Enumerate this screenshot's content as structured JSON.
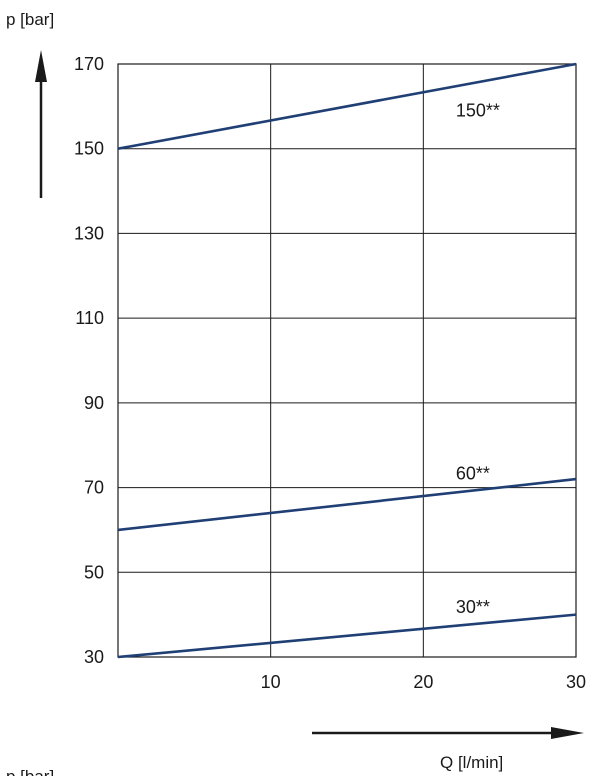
{
  "chart_data": {
    "type": "line",
    "ylabel": "p [bar]",
    "xlabel": "Q [l/min]",
    "footer_label": "p [bar]",
    "x_ticks": [
      10,
      20,
      30
    ],
    "y_ticks": [
      30,
      50,
      70,
      90,
      110,
      130,
      150,
      170
    ],
    "xlim": [
      0,
      30
    ],
    "ylim": [
      30,
      170
    ],
    "grid": true,
    "series": [
      {
        "name": "150**",
        "x": [
          0,
          30
        ],
        "y": [
          150,
          170
        ]
      },
      {
        "name": "60**",
        "x": [
          0,
          30
        ],
        "y": [
          60,
          72
        ]
      },
      {
        "name": "30**",
        "x": [
          0,
          30
        ],
        "y": [
          30,
          40
        ]
      }
    ],
    "line_color": "#1f3f75"
  }
}
